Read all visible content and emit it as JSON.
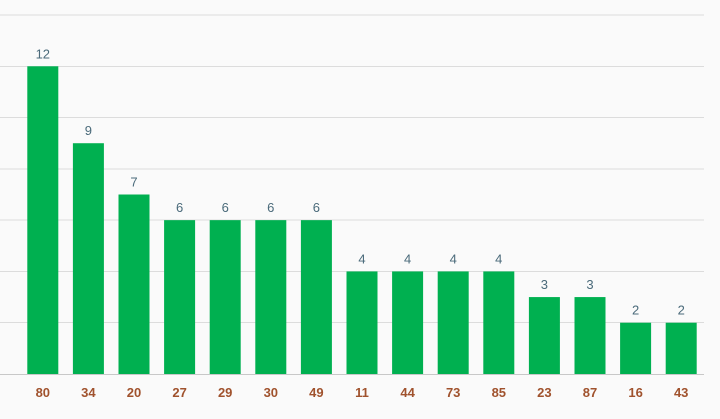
{
  "chart_data": {
    "type": "bar",
    "categories": [
      "80",
      "34",
      "20",
      "27",
      "29",
      "30",
      "49",
      "11",
      "44",
      "73",
      "85",
      "23",
      "87",
      "16",
      "43"
    ],
    "values": [
      12,
      9,
      7,
      6,
      6,
      6,
      6,
      4,
      4,
      4,
      4,
      3,
      3,
      2,
      2
    ],
    "ylim": [
      0,
      14
    ],
    "grid": true,
    "data_labels": true,
    "colors": {
      "bar": "#00b050",
      "value_label": "#4a6a7a",
      "category_label": "#a0522d",
      "grid": "#dcdcdc",
      "background": "#fafafa"
    }
  }
}
